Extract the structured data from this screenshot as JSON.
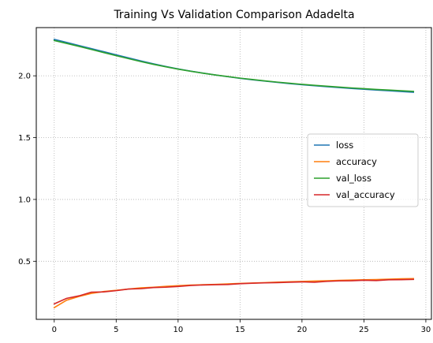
{
  "chart_data": {
    "type": "line",
    "title": "Training Vs Validation Comparison Adadelta",
    "xlabel": "",
    "ylabel": "",
    "xlim": [
      -1.45,
      30.45
    ],
    "ylim": [
      0.03,
      2.39
    ],
    "xticks": [
      0,
      5,
      10,
      15,
      20,
      25,
      30
    ],
    "yticks": [
      0.5,
      1.0,
      1.5,
      2.0
    ],
    "xtick_labels": [
      "0",
      "5",
      "10",
      "15",
      "20",
      "25",
      "30"
    ],
    "ytick_labels": [
      "0.5",
      "1.0",
      "1.5",
      "2.0"
    ],
    "grid": true,
    "legend_position": "right",
    "series": [
      {
        "name": "loss",
        "color": "#1f77b4",
        "x": [
          0,
          1,
          2,
          3,
          4,
          5,
          6,
          7,
          8,
          9,
          10,
          11,
          12,
          13,
          14,
          15,
          16,
          17,
          18,
          19,
          20,
          21,
          22,
          23,
          24,
          25,
          26,
          27,
          28,
          29
        ],
        "y": [
          2.295,
          2.27,
          2.245,
          2.22,
          2.195,
          2.17,
          2.145,
          2.12,
          2.097,
          2.076,
          2.056,
          2.038,
          2.022,
          2.007,
          1.993,
          1.98,
          1.968,
          1.957,
          1.947,
          1.937,
          1.928,
          1.92,
          1.912,
          1.905,
          1.898,
          1.891,
          1.885,
          1.879,
          1.873,
          1.867
        ]
      },
      {
        "name": "accuracy",
        "color": "#ff7f0e",
        "x": [
          0,
          1,
          2,
          3,
          4,
          5,
          6,
          7,
          8,
          9,
          10,
          11,
          12,
          13,
          14,
          15,
          16,
          17,
          18,
          19,
          20,
          21,
          22,
          23,
          24,
          25,
          26,
          27,
          28,
          29
        ],
        "y": [
          0.125,
          0.185,
          0.215,
          0.24,
          0.255,
          0.265,
          0.275,
          0.285,
          0.29,
          0.297,
          0.302,
          0.307,
          0.31,
          0.313,
          0.317,
          0.321,
          0.324,
          0.327,
          0.331,
          0.334,
          0.337,
          0.34,
          0.342,
          0.345,
          0.348,
          0.35,
          0.352,
          0.355,
          0.358,
          0.36
        ]
      },
      {
        "name": "val_loss",
        "color": "#2ca02c",
        "x": [
          0,
          1,
          2,
          3,
          4,
          5,
          6,
          7,
          8,
          9,
          10,
          11,
          12,
          13,
          14,
          15,
          16,
          17,
          18,
          19,
          20,
          21,
          22,
          23,
          24,
          25,
          26,
          27,
          28,
          29
        ],
        "y": [
          2.285,
          2.262,
          2.238,
          2.213,
          2.188,
          2.163,
          2.139,
          2.115,
          2.093,
          2.073,
          2.054,
          2.037,
          2.021,
          2.007,
          1.994,
          1.981,
          1.97,
          1.959,
          1.949,
          1.94,
          1.931,
          1.923,
          1.916,
          1.909,
          1.902,
          1.896,
          1.89,
          1.885,
          1.879,
          1.874
        ]
      },
      {
        "name": "val_accuracy",
        "color": "#d62728",
        "x": [
          0,
          1,
          2,
          3,
          4,
          5,
          6,
          7,
          8,
          9,
          10,
          11,
          12,
          13,
          14,
          15,
          16,
          17,
          18,
          19,
          20,
          21,
          22,
          23,
          24,
          25,
          26,
          27,
          28,
          29
        ],
        "y": [
          0.155,
          0.2,
          0.22,
          0.25,
          0.252,
          0.262,
          0.275,
          0.278,
          0.287,
          0.29,
          0.296,
          0.304,
          0.308,
          0.31,
          0.312,
          0.318,
          0.322,
          0.325,
          0.327,
          0.33,
          0.333,
          0.33,
          0.337,
          0.341,
          0.342,
          0.346,
          0.344,
          0.35,
          0.351,
          0.353
        ]
      }
    ]
  }
}
